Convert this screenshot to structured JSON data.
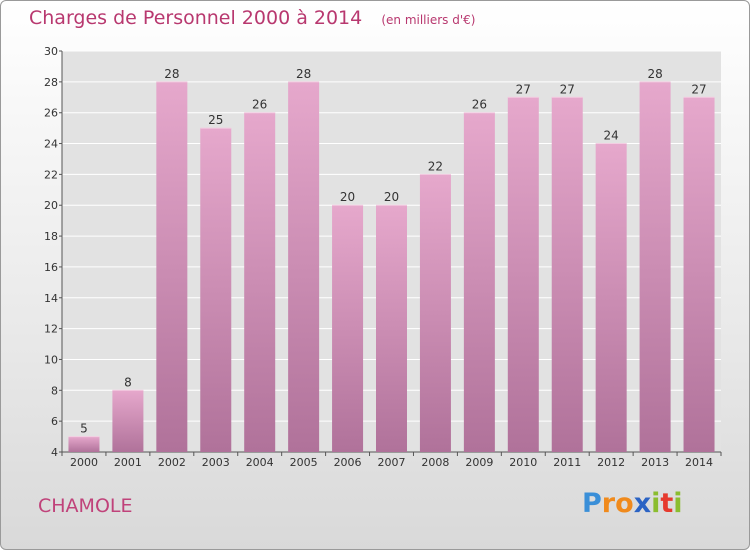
{
  "header": {
    "title": "Charges de Personnel 2000 à 2014",
    "subtitle": "(en milliers d'€)"
  },
  "footer": {
    "place": "CHAMOLE",
    "logo": "Proxiti"
  },
  "colors": {
    "bar_top": "#e6a8cc",
    "bar_bottom": "#b0729a",
    "title": "#b8386f"
  },
  "chart_data": {
    "type": "bar",
    "categories": [
      "2000",
      "2001",
      "2002",
      "2003",
      "2004",
      "2005",
      "2006",
      "2007",
      "2008",
      "2009",
      "2010",
      "2011",
      "2012",
      "2013",
      "2014"
    ],
    "values": [
      5,
      8,
      28,
      25,
      26,
      28,
      20,
      20,
      22,
      26,
      27,
      27,
      24,
      28,
      27
    ],
    "title": "Charges de Personnel 2000 à 2014",
    "subtitle": "(en milliers d'€)",
    "xlabel": "",
    "ylabel": "",
    "ylim": [
      4,
      30
    ],
    "yticks": [
      4,
      6,
      8,
      10,
      12,
      14,
      16,
      18,
      20,
      22,
      24,
      26,
      28,
      30
    ],
    "grid": true,
    "legend": "none"
  }
}
